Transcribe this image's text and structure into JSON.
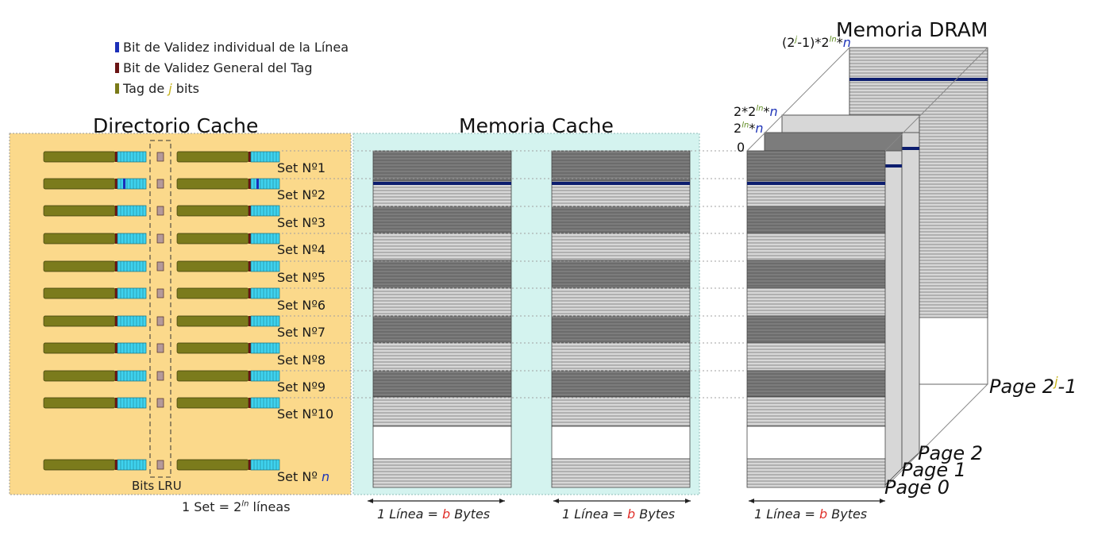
{
  "legend": [
    {
      "text": "Bit de Validez individual de la Línea",
      "color": "#1b2fb8"
    },
    {
      "text": "Bit de Validez General del Tag",
      "color": "#6a1414"
    },
    {
      "text_before": "Tag de ",
      "j": "j",
      "text_after": " bits",
      "color": "#7a7a18"
    }
  ],
  "titles": {
    "directorio": "Directorio Cache",
    "memoria_cache": "Memoria Cache",
    "memoria_dram": "Memoria DRAM"
  },
  "sets": [
    "Set Nº1",
    "Set Nº2",
    "Set Nº3",
    "Set Nº4",
    "Set Nº5",
    "Set Nº6",
    "Set Nº7",
    "Set Nº8",
    "Set Nº9",
    "Set Nº10"
  ],
  "last_set": {
    "prefix": "Set Nº ",
    "var": "n"
  },
  "bits_lru": "Bits LRU",
  "set_formula": {
    "before": "1 Set = 2",
    "sup": "ln",
    "after": " líneas"
  },
  "line_caption": {
    "prefix": "1 Línea = ",
    "b": "b",
    "suffix": " Bytes"
  },
  "pages": [
    "Page 0",
    "Page 1",
    "Page 2"
  ],
  "page_last": {
    "base": "Page 2",
    "sup": "j",
    "suffix": "-1"
  },
  "dram_addresses": {
    "a0": "0",
    "a1": {
      "base": "2",
      "sup": "ln",
      "mid": "*",
      "n": "n"
    },
    "a2": {
      "pre": "2*2",
      "sup": "ln",
      "mid": "*",
      "n": "n"
    },
    "a3": {
      "pre": "(2",
      "sup1": "j",
      "mid1": "-1)*2",
      "sup2": "ln",
      "mid2": "*",
      "n": "n"
    }
  },
  "colors": {
    "directory_bg": "#fbd98b",
    "cache_bg": "#d4f3ef",
    "tag": "#7b7b1c",
    "valid_line": "#3ed2ee",
    "valid_general": "#6a1414",
    "valid_individual": "#1b2fb8",
    "dark_band": "#7c7c7c",
    "light_band": "#d7d7d7",
    "highlight_line": "#0c1d6e",
    "caption_b": "#e0312b"
  }
}
